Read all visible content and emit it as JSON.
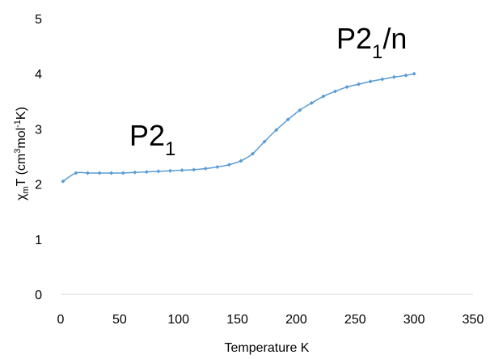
{
  "chart_data": {
    "type": "scatter",
    "title": "",
    "xlabel": "Temperature K",
    "ylabel": {
      "chi": "χ",
      "chi_sub": "m",
      "t_open": "T (cm",
      "sup3": "3",
      "mol": "mol",
      "sup_neg1": "-1",
      "k_close": "K)"
    },
    "xlim": [
      0,
      350
    ],
    "ylim": [
      0,
      5
    ],
    "x_ticks": [
      "0",
      "50",
      "100",
      "150",
      "200",
      "250",
      "300",
      "350"
    ],
    "y_ticks": [
      "0",
      "1",
      "2",
      "3",
      "4",
      "5"
    ],
    "grid": false,
    "series": [
      {
        "color": "#5b9bd5",
        "x": [
          2,
          13,
          23,
          33,
          43,
          53,
          63,
          73,
          83,
          93,
          103,
          113,
          123,
          133,
          143,
          153,
          163,
          173,
          183,
          193,
          203,
          213,
          223,
          233,
          243,
          253,
          263,
          273,
          283,
          293,
          300
        ],
        "y": [
          2.05,
          2.2,
          2.2,
          2.2,
          2.2,
          2.2,
          2.21,
          2.22,
          2.23,
          2.24,
          2.25,
          2.26,
          2.28,
          2.31,
          2.35,
          2.42,
          2.55,
          2.77,
          2.98,
          3.17,
          3.34,
          3.47,
          3.59,
          3.68,
          3.76,
          3.81,
          3.86,
          3.9,
          3.94,
          3.97,
          4.0
        ]
      }
    ],
    "annotations": [
      {
        "main": "P2",
        "sub": "1",
        "rest": ""
      },
      {
        "main": "P2",
        "sub": "1",
        "rest": "/n"
      }
    ]
  }
}
